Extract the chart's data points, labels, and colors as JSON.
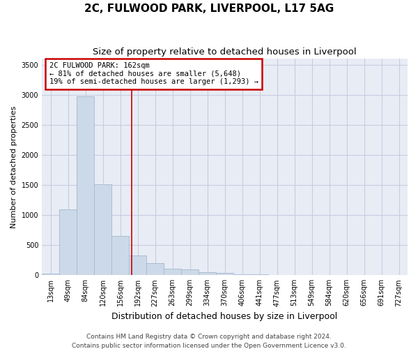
{
  "title": "2C, FULWOOD PARK, LIVERPOOL, L17 5AG",
  "subtitle": "Size of property relative to detached houses in Liverpool",
  "xlabel": "Distribution of detached houses by size in Liverpool",
  "ylabel": "Number of detached properties",
  "footer1": "Contains HM Land Registry data © Crown copyright and database right 2024.",
  "footer2": "Contains public sector information licensed under the Open Government Licence v3.0.",
  "categories": [
    "13sqm",
    "49sqm",
    "84sqm",
    "120sqm",
    "156sqm",
    "192sqm",
    "227sqm",
    "263sqm",
    "299sqm",
    "334sqm",
    "370sqm",
    "406sqm",
    "441sqm",
    "477sqm",
    "513sqm",
    "549sqm",
    "584sqm",
    "620sqm",
    "656sqm",
    "691sqm",
    "727sqm"
  ],
  "values": [
    30,
    1100,
    2980,
    1510,
    650,
    330,
    205,
    110,
    100,
    55,
    35,
    20,
    15,
    8,
    4,
    3,
    2,
    1,
    0,
    0,
    0
  ],
  "bar_color": "#ccd9e8",
  "bar_edge_color": "#aabdd4",
  "vline_x": 4.65,
  "vline_color": "#cc0000",
  "annotation_line1": "2C FULWOOD PARK: 162sqm",
  "annotation_line2": "← 81% of detached houses are smaller (5,648)",
  "annotation_line3": "19% of semi-detached houses are larger (1,293) →",
  "annotation_box_color": "#cc0000",
  "ylim": [
    0,
    3600
  ],
  "yticks": [
    0,
    500,
    1000,
    1500,
    2000,
    2500,
    3000,
    3500
  ],
  "grid_color": "#c8cce0",
  "bg_color": "#ffffff",
  "plot_bg_color": "#e8ecf5",
  "title_fontsize": 11,
  "subtitle_fontsize": 9.5,
  "xlabel_fontsize": 9,
  "ylabel_fontsize": 8,
  "footer_fontsize": 6.5,
  "tick_fontsize": 7
}
